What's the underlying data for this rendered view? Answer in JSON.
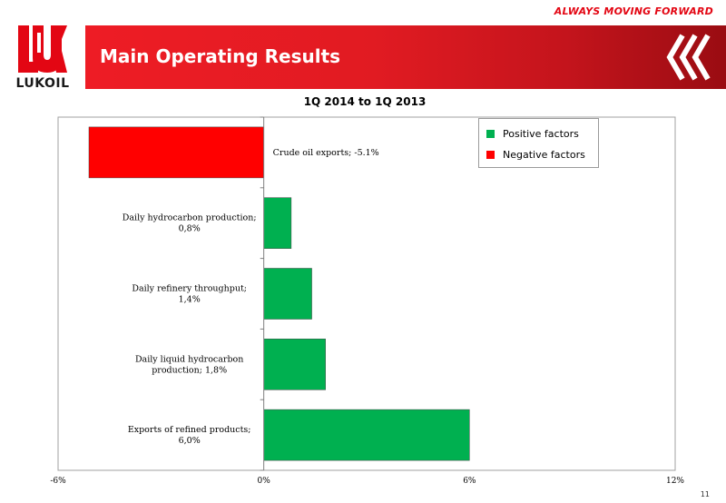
{
  "header": {
    "slogan": "ALWAYS MOVING FORWARD",
    "title": "Main Operating Results",
    "logo_text": "LUKOIL",
    "page_number": "11"
  },
  "colors": {
    "brand_red": "#e30613",
    "positive": "#00b050",
    "negative": "#ff0000"
  },
  "chart_data": {
    "type": "bar",
    "orientation": "horizontal",
    "title": "1Q 2014 to 1Q 2013",
    "categories": [
      "Crude oil exports; -5.1%",
      "Daily hydrocarbon production; 0,8%",
      "Daily refinery throughput; 1,4%",
      "Daily liquid hydrocarbon production; 1,8%",
      "Exports of refined products; 6,0%"
    ],
    "values": [
      -5.1,
      0.8,
      1.4,
      1.8,
      6.0
    ],
    "xlim": [
      -6,
      12
    ],
    "x_ticks": [
      "-6%",
      "0%",
      "6%",
      "12%"
    ],
    "grid": false,
    "legend": {
      "placement": "top-right",
      "entries": [
        {
          "name": "Positive factors",
          "color": "#00b050"
        },
        {
          "name": "Negative factors",
          "color": "#ff0000"
        }
      ]
    }
  }
}
